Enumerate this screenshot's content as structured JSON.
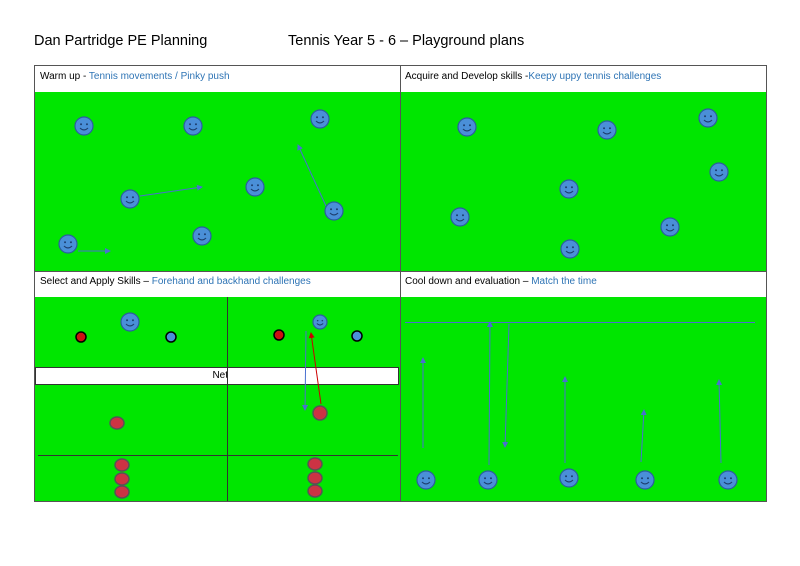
{
  "header": {
    "left": "Dan Partridge PE Planning",
    "right": "Tennis Year 5 - 6 – Playground plans"
  },
  "panels": {
    "warmup": {
      "label": "Warm up - ",
      "detail": "Tennis movements / Pinky push"
    },
    "acquire": {
      "label": "Acquire and Develop skills -",
      "detail": "Keepy uppy tennis challenges"
    },
    "select": {
      "label": "Select and Apply Skills – ",
      "detail": "Forehand and backhand challenges"
    },
    "cooldown": {
      "label": "Cool down and evaluation – ",
      "detail": "Match the time"
    }
  },
  "net_label": "Net",
  "colors": {
    "grass": "#00e600",
    "player": "#4a8fd8",
    "ball": "#cc3344",
    "accent": "#2e74b5",
    "arrow_red": "#cc0000"
  }
}
